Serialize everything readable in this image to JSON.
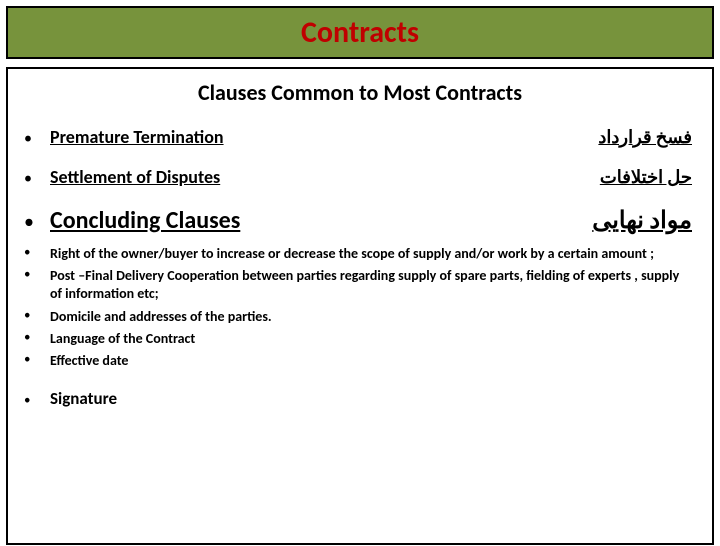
{
  "title": "Contracts",
  "subtitle": "Clauses Common to Most Contracts",
  "colors": {
    "title_bg": "#77933c",
    "title_text": "#c00000",
    "border": "#000000",
    "text": "#000000"
  },
  "rows": [
    {
      "left": "Premature Termination",
      "right": "فسخ قرارداد",
      "size": "normal"
    },
    {
      "left": "Settlement of Disputes",
      "right": "حل اختلافات",
      "size": "normal"
    },
    {
      "left": "Concluding Clauses",
      "right": "مواد نهایی",
      "size": "large"
    }
  ],
  "sub_items": [
    "Right of the owner/buyer to increase or decrease the scope of supply and/or work by a certain amount ;",
    "Post –Final Delivery Cooperation between parties regarding supply of spare parts, fielding of experts , supply of information etc;",
    "Domicile and addresses of the parties.",
    "Language of the Contract",
    "Effective date"
  ],
  "signature": "Signature",
  "bullet_char": "•"
}
